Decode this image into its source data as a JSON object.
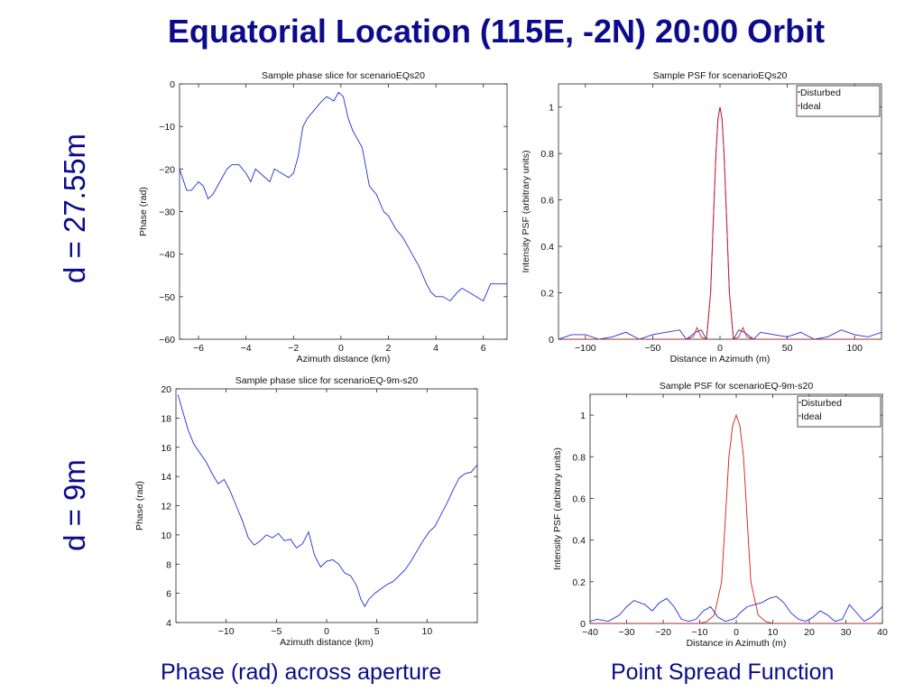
{
  "slide": {
    "title": "Equatorial Location (115E, -2N) 20:00 Orbit",
    "row_labels": [
      "d  = 27.55m",
      "d  = 9m"
    ],
    "captions": [
      "Phase (rad) across aperture",
      "Point Spread Function"
    ]
  },
  "colors": {
    "heading": "#0b0b8c",
    "disturbed": "#1f2fd6",
    "ideal": "#e01616"
  },
  "chart_data": [
    {
      "type": "line",
      "title": "Sample phase slice for scenarioEQs20",
      "xlabel": "Azimuth distance (km)",
      "ylabel": "Phase (rad)",
      "xlim": [
        -6.8,
        7
      ],
      "ylim": [
        -60,
        0
      ],
      "xticks": [
        -6,
        -4,
        -2,
        0,
        2,
        4,
        6
      ],
      "yticks": [
        0,
        -10,
        -20,
        -30,
        -40,
        -50,
        -60
      ],
      "grid": false,
      "series": [
        {
          "x": [
            -6.8,
            -6.5,
            -6.3,
            -6.0,
            -5.8,
            -5.6,
            -5.4,
            -5.1,
            -4.8,
            -4.6,
            -4.3,
            -4.0,
            -3.8,
            -3.6,
            -3.4,
            -3.0,
            -2.8,
            -2.5,
            -2.2,
            -2.0,
            -1.8,
            -1.6,
            -1.4,
            -1.1,
            -0.8,
            -0.6,
            -0.3,
            -0.1,
            0.1,
            0.3,
            0.5,
            0.7,
            0.9,
            1.2,
            1.5,
            1.8,
            2.0,
            2.3,
            2.6,
            3.0,
            3.3,
            3.6,
            3.8,
            4.0,
            4.3,
            4.6,
            4.9,
            5.1,
            5.4,
            5.7,
            6.0,
            6.3,
            6.6,
            7.0
          ],
          "y": [
            -20,
            -25,
            -25,
            -23,
            -24,
            -27,
            -26,
            -23,
            -20,
            -19,
            -19,
            -21,
            -23,
            -20,
            -21,
            -23,
            -20,
            -21,
            -22,
            -21,
            -17,
            -10,
            -8,
            -6,
            -4,
            -3,
            -4,
            -2,
            -3,
            -8,
            -11,
            -13,
            -15,
            -24,
            -26,
            -30,
            -31,
            -34,
            -36,
            -40,
            -43,
            -47,
            -49,
            -50,
            -50,
            -51,
            -49,
            -48,
            -49,
            -50,
            -51,
            -47,
            -47,
            -47
          ]
        }
      ]
    },
    {
      "type": "line",
      "title": "Sample PSF for scenarioEQs20",
      "xlabel": "Distance in Azimuth (m)",
      "ylabel": "Intensity PSF (arbitrary units)",
      "xlim": [
        -120,
        120
      ],
      "ylim": [
        0,
        1.1
      ],
      "xticks": [
        -100,
        -50,
        0,
        50,
        100
      ],
      "yticks": [
        0,
        0.2,
        0.4,
        0.6,
        0.8,
        1
      ],
      "ytick_labels": [
        "0",
        "0.2",
        "0.4",
        "0.6",
        "0.8",
        "1"
      ],
      "legend": "top-right",
      "grid": false,
      "series": [
        {
          "name": "Disturbed",
          "x": [
            -120,
            -110,
            -100,
            -90,
            -80,
            -70,
            -60,
            -50,
            -40,
            -30,
            -25,
            -18,
            -14,
            -10,
            -7,
            -5,
            -3,
            -1.5,
            0,
            1.5,
            3,
            5,
            7,
            10,
            14,
            18,
            25,
            30,
            40,
            50,
            60,
            70,
            80,
            90,
            100,
            110,
            120
          ],
          "y": [
            0,
            0.02,
            0.02,
            0,
            0.01,
            0.03,
            0,
            0.02,
            0.03,
            0.04,
            0,
            0.03,
            0.04,
            0,
            0.2,
            0.5,
            0.8,
            0.95,
            1,
            0.95,
            0.8,
            0.5,
            0.2,
            0,
            0.04,
            0.03,
            0,
            0.03,
            0.02,
            0.01,
            0.03,
            0,
            0.01,
            0.04,
            0.02,
            0.01,
            0.03
          ]
        },
        {
          "name": "Ideal",
          "x": [
            -120,
            -100,
            -50,
            -30,
            -25,
            -20,
            -17,
            -14,
            -10,
            -7,
            -5,
            -3,
            -1.5,
            0,
            1.5,
            3,
            5,
            7,
            10,
            14,
            17,
            20,
            25,
            30,
            50,
            100,
            120
          ],
          "y": [
            0,
            0,
            0,
            0,
            0,
            0.01,
            0.05,
            0.01,
            0,
            0.2,
            0.5,
            0.8,
            0.95,
            1,
            0.95,
            0.8,
            0.5,
            0.2,
            0,
            0.01,
            0.05,
            0.01,
            0,
            0,
            0,
            0,
            0
          ]
        }
      ]
    },
    {
      "type": "line",
      "title": "Sample phase slice for scenarioEQ-9m-s20",
      "xlabel": "Azimuth distance (km)",
      "ylabel": "Phase (rad)",
      "xlim": [
        -15,
        15
      ],
      "ylim": [
        4,
        20
      ],
      "xticks": [
        -10,
        -5,
        0,
        5,
        10
      ],
      "yticks": [
        4,
        6,
        8,
        10,
        12,
        14,
        16,
        18,
        20
      ],
      "grid": false,
      "series": [
        {
          "x": [
            -14.8,
            -14.3,
            -13.8,
            -13.2,
            -12.6,
            -12.0,
            -11.4,
            -10.8,
            -10.2,
            -9.6,
            -9.0,
            -8.4,
            -7.8,
            -7.2,
            -6.6,
            -6.0,
            -5.4,
            -4.8,
            -4.2,
            -3.6,
            -3.0,
            -2.4,
            -1.8,
            -1.2,
            -0.6,
            0.0,
            0.6,
            1.2,
            1.8,
            2.4,
            3.0,
            3.4,
            3.8,
            4.2,
            4.8,
            5.4,
            6.0,
            6.6,
            7.2,
            7.8,
            8.4,
            9.0,
            9.6,
            10.2,
            10.8,
            11.4,
            12.0,
            12.6,
            13.2,
            13.8,
            14.4,
            15.0
          ],
          "y": [
            19.6,
            18.4,
            17.2,
            16.2,
            15.6,
            15.0,
            14.2,
            13.5,
            13.8,
            13.0,
            12.0,
            11.0,
            9.8,
            9.3,
            9.6,
            10.0,
            9.8,
            10.1,
            9.6,
            9.7,
            9.1,
            9.4,
            10.2,
            8.6,
            7.8,
            8.2,
            8.3,
            8.0,
            7.4,
            7.2,
            6.5,
            5.6,
            5.1,
            5.6,
            6.0,
            6.3,
            6.6,
            6.8,
            7.2,
            7.6,
            8.2,
            8.9,
            9.6,
            10.2,
            10.6,
            11.4,
            12.2,
            13.1,
            13.9,
            14.2,
            14.3,
            14.8
          ]
        }
      ]
    },
    {
      "type": "line",
      "title": "Sample PSF for scenarioEQ-9m-s20",
      "xlabel": "Distance in Azimuth (m)",
      "ylabel": "Intensity PSF (arbitrary units)",
      "xlim": [
        -40,
        40
      ],
      "ylim": [
        0,
        1.1
      ],
      "xticks": [
        -40,
        -30,
        -20,
        -10,
        0,
        10,
        20,
        30,
        40
      ],
      "yticks": [
        0,
        0.2,
        0.4,
        0.6,
        0.8,
        1
      ],
      "ytick_labels": [
        "0",
        "0.2",
        "0.4",
        "0.6",
        "0.8",
        "1"
      ],
      "legend": "top-right",
      "grid": false,
      "series": [
        {
          "name": "Disturbed",
          "x": [
            -40,
            -38,
            -35,
            -32,
            -30,
            -28,
            -25,
            -23,
            -21,
            -19,
            -17,
            -15,
            -13,
            -11,
            -9,
            -7,
            -5,
            -3,
            -1,
            0,
            1,
            3,
            5,
            7,
            9,
            11,
            13,
            15,
            17,
            19,
            21,
            23,
            25,
            27,
            29,
            31,
            33,
            35,
            37,
            40
          ],
          "y": [
            0.01,
            0.02,
            0.01,
            0.04,
            0.08,
            0.11,
            0.09,
            0.06,
            0.1,
            0.12,
            0.08,
            0.02,
            0.01,
            0.02,
            0.06,
            0.08,
            0.03,
            0.01,
            0.02,
            0.03,
            0.05,
            0.08,
            0.09,
            0.1,
            0.12,
            0.13,
            0.1,
            0.05,
            0.02,
            0.01,
            0.03,
            0.06,
            0.04,
            0.01,
            0.02,
            0.09,
            0.05,
            0.01,
            0.03,
            0.08
          ]
        },
        {
          "name": "Ideal",
          "x": [
            -40,
            -30,
            -20,
            -10,
            -8,
            -6,
            -4,
            -3,
            -2,
            -1,
            0,
            1,
            2,
            3,
            4,
            6,
            8,
            10,
            20,
            30,
            40
          ],
          "y": [
            0,
            0,
            0,
            0,
            0.01,
            0.04,
            0.2,
            0.5,
            0.8,
            0.95,
            1,
            0.95,
            0.8,
            0.5,
            0.2,
            0.04,
            0.01,
            0,
            0,
            0,
            0
          ]
        }
      ]
    }
  ]
}
